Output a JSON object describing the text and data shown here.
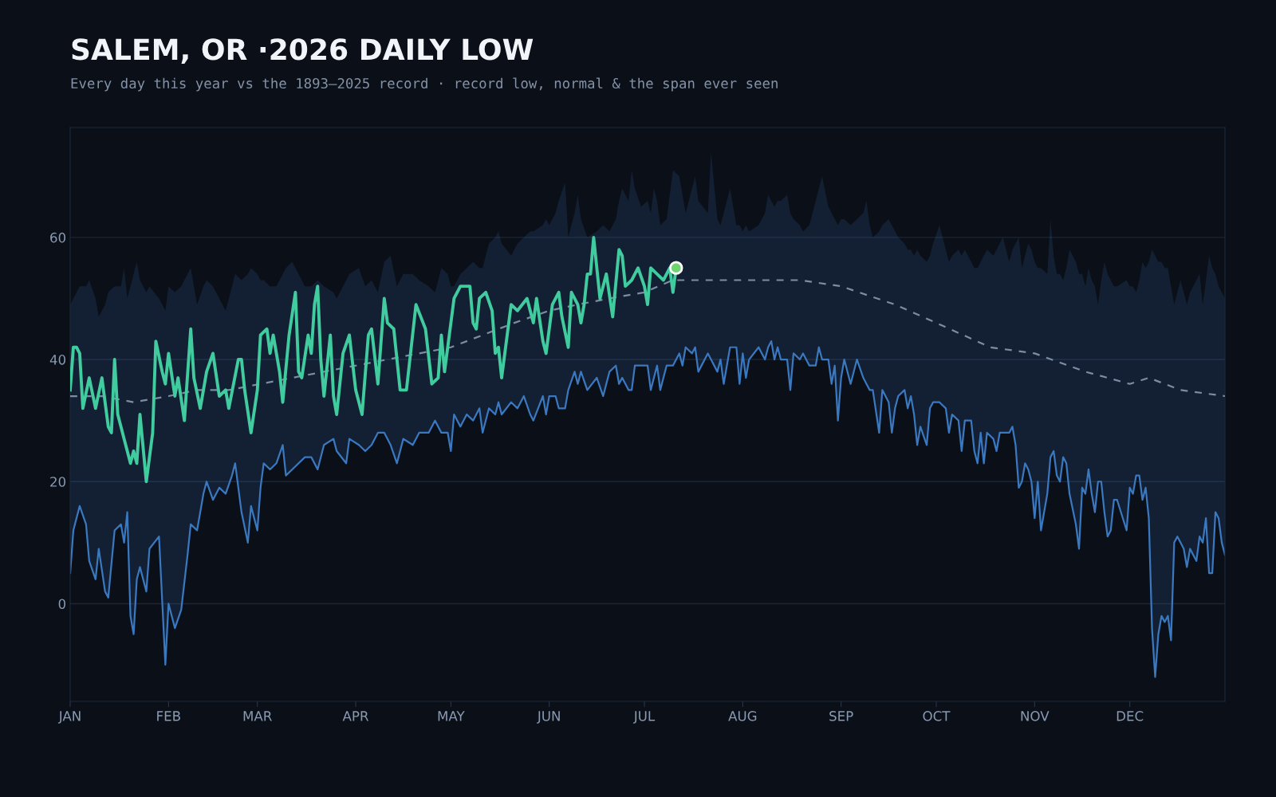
{
  "chart_data": {
    "type": "line",
    "title": "SALEM, OR ·2026 DAILY LOW",
    "subtitle": "Every day this year vs the 1893–2025 record · record low, normal & the span ever seen",
    "xlim": [
      "2026-01-01",
      "2026-12-31"
    ],
    "xticks": [
      {
        "value": "2026-01-01",
        "label": "JAN"
      },
      {
        "value": "2026-02-01",
        "label": "FEB"
      },
      {
        "value": "2026-03-01",
        "label": "MAR"
      },
      {
        "value": "2026-04-01",
        "label": "APR"
      },
      {
        "value": "2026-05-01",
        "label": "MAY"
      },
      {
        "value": "2026-06-01",
        "label": "JUN"
      },
      {
        "value": "2026-07-01",
        "label": "JUL"
      },
      {
        "value": "2026-08-01",
        "label": "AUG"
      },
      {
        "value": "2026-09-01",
        "label": "SEP"
      },
      {
        "value": "2026-10-01",
        "label": "OCT"
      },
      {
        "value": "2026-11-01",
        "label": "NOV"
      },
      {
        "value": "2026-12-01",
        "label": "DEC"
      }
    ],
    "ylim": [
      -16,
      78
    ],
    "yticks": [
      0,
      20,
      40,
      60
    ],
    "grid": "y",
    "series": [
      {
        "type": "line",
        "color": "#3a78c0",
        "line_style": "solid",
        "x": [
          "2026-01-01",
          "2026-01-02",
          "2026-01-04",
          "2026-01-06",
          "2026-01-07",
          "2026-01-09",
          "2026-01-10",
          "2026-01-12",
          "2026-01-13",
          "2026-01-15",
          "2026-01-17",
          "2026-01-18",
          "2026-01-19",
          "2026-01-20",
          "2026-01-21",
          "2026-01-22",
          "2026-01-23",
          "2026-01-25",
          "2026-01-26",
          "2026-01-29",
          "2026-01-31",
          "2026-02-01",
          "2026-02-03",
          "2026-02-05",
          "2026-02-07",
          "2026-02-08",
          "2026-02-10",
          "2026-02-12",
          "2026-02-13",
          "2026-02-15",
          "2026-02-17",
          "2026-02-19",
          "2026-02-21",
          "2026-02-22",
          "2026-02-24",
          "2026-02-26",
          "2026-02-27",
          "2026-03-01",
          "2026-03-02",
          "2026-03-03",
          "2026-03-05",
          "2026-03-07",
          "2026-03-09",
          "2026-03-10",
          "2026-03-12",
          "2026-03-14",
          "2026-03-16",
          "2026-03-18",
          "2026-03-20",
          "2026-03-22",
          "2026-03-25",
          "2026-03-26",
          "2026-03-29",
          "2026-03-30",
          "2026-04-02",
          "2026-04-04",
          "2026-04-06",
          "2026-04-08",
          "2026-04-10",
          "2026-04-12",
          "2026-04-14",
          "2026-04-16",
          "2026-04-19",
          "2026-04-21",
          "2026-04-24",
          "2026-04-26",
          "2026-04-28",
          "2026-04-30",
          "2026-05-01",
          "2026-05-02",
          "2026-05-04",
          "2026-05-06",
          "2026-05-08",
          "2026-05-10",
          "2026-05-11",
          "2026-05-13",
          "2026-05-15",
          "2026-05-16",
          "2026-05-17",
          "2026-05-20",
          "2026-05-22",
          "2026-05-24",
          "2026-05-26",
          "2026-05-27",
          "2026-05-30",
          "2026-05-31",
          "2026-06-01",
          "2026-06-03",
          "2026-06-04",
          "2026-06-06",
          "2026-06-07",
          "2026-06-09",
          "2026-06-10",
          "2026-06-11",
          "2026-06-13",
          "2026-06-16",
          "2026-06-18",
          "2026-06-20",
          "2026-06-22",
          "2026-06-23",
          "2026-06-24",
          "2026-06-26",
          "2026-06-27",
          "2026-06-28",
          "2026-06-30",
          "2026-07-02",
          "2026-07-03",
          "2026-07-04",
          "2026-07-05",
          "2026-07-06",
          "2026-07-08",
          "2026-07-10",
          "2026-07-12",
          "2026-07-13",
          "2026-07-14",
          "2026-07-16",
          "2026-07-17",
          "2026-07-18",
          "2026-07-21",
          "2026-07-22",
          "2026-07-24",
          "2026-07-25",
          "2026-07-26",
          "2026-07-28",
          "2026-07-30",
          "2026-07-31",
          "2026-08-01",
          "2026-08-02",
          "2026-08-03",
          "2026-08-06",
          "2026-08-08",
          "2026-08-09",
          "2026-08-10",
          "2026-08-11",
          "2026-08-12",
          "2026-08-13",
          "2026-08-15",
          "2026-08-16",
          "2026-08-17",
          "2026-08-19",
          "2026-08-20",
          "2026-08-22",
          "2026-08-24",
          "2026-08-25",
          "2026-08-26",
          "2026-08-28",
          "2026-08-29",
          "2026-08-30",
          "2026-08-31",
          "2026-09-01",
          "2026-09-02",
          "2026-09-04",
          "2026-09-06",
          "2026-09-08",
          "2026-09-09",
          "2026-09-10",
          "2026-09-11",
          "2026-09-13",
          "2026-09-14",
          "2026-09-16",
          "2026-09-17",
          "2026-09-18",
          "2026-09-19",
          "2026-09-21",
          "2026-09-22",
          "2026-09-23",
          "2026-09-24",
          "2026-09-25",
          "2026-09-26",
          "2026-09-28",
          "2026-09-29",
          "2026-09-30",
          "2026-10-02",
          "2026-10-04",
          "2026-10-05",
          "2026-10-06",
          "2026-10-08",
          "2026-10-09",
          "2026-10-10",
          "2026-10-12",
          "2026-10-13",
          "2026-10-14",
          "2026-10-15",
          "2026-10-16",
          "2026-10-17",
          "2026-10-19",
          "2026-10-20",
          "2026-10-21",
          "2026-10-22",
          "2026-10-24",
          "2026-10-25",
          "2026-10-26",
          "2026-10-27",
          "2026-10-28",
          "2026-10-29",
          "2026-10-30",
          "2026-10-31",
          "2026-11-01",
          "2026-11-02",
          "2026-11-03",
          "2026-11-05",
          "2026-11-06",
          "2026-11-07",
          "2026-11-08",
          "2026-11-09",
          "2026-11-10",
          "2026-11-11",
          "2026-11-12",
          "2026-11-14",
          "2026-11-15",
          "2026-11-16",
          "2026-11-17",
          "2026-11-18",
          "2026-11-19",
          "2026-11-20",
          "2026-11-21",
          "2026-11-22",
          "2026-11-23",
          "2026-11-24",
          "2026-11-25",
          "2026-11-26",
          "2026-11-27",
          "2026-11-30",
          "2026-12-01",
          "2026-12-02",
          "2026-12-03",
          "2026-12-04",
          "2026-12-05",
          "2026-12-06",
          "2026-12-07",
          "2026-12-08",
          "2026-12-09",
          "2026-12-10",
          "2026-12-11",
          "2026-12-12",
          "2026-12-13",
          "2026-12-14",
          "2026-12-15",
          "2026-12-16",
          "2026-12-17",
          "2026-12-18",
          "2026-12-19",
          "2026-12-20",
          "2026-12-21",
          "2026-12-22",
          "2026-12-23",
          "2026-12-24",
          "2026-12-25",
          "2026-12-26",
          "2026-12-27",
          "2026-12-28",
          "2026-12-29",
          "2026-12-30",
          "2026-12-31"
        ],
        "lower": [
          5,
          12,
          16,
          13,
          7,
          4,
          9,
          2,
          1,
          12,
          13,
          10,
          15,
          -2,
          -5,
          4,
          6,
          2,
          9,
          11,
          -10,
          0,
          -4,
          -1,
          8,
          13,
          12,
          18,
          20,
          17,
          19,
          18,
          21,
          23,
          15,
          10,
          16,
          12,
          19,
          23,
          22,
          23,
          26,
          21,
          22,
          23,
          24,
          24,
          22,
          26,
          27,
          25,
          23,
          27,
          26,
          25,
          26,
          28,
          28,
          26,
          23,
          27,
          26,
          28,
          28,
          30,
          28,
          28,
          25,
          31,
          29,
          31,
          30,
          32,
          28,
          32,
          31,
          33,
          31,
          33,
          32,
          34,
          31,
          30,
          34,
          31,
          34,
          34,
          32,
          32,
          35,
          38,
          36,
          38,
          35,
          37,
          34,
          38,
          39,
          36,
          37,
          35,
          35,
          39,
          39,
          39,
          35,
          37,
          39,
          35,
          39,
          39,
          41,
          39,
          42,
          41,
          42,
          38,
          41,
          40,
          38,
          40,
          36,
          42,
          42,
          36,
          41,
          37,
          40,
          42,
          40,
          42,
          43,
          40,
          42,
          40,
          40,
          35,
          41,
          40,
          41,
          39,
          39,
          42,
          40,
          40,
          36,
          39,
          30,
          37,
          40,
          36,
          40,
          37,
          36,
          35,
          35,
          28,
          35,
          33,
          28,
          32,
          34,
          35,
          32,
          34,
          31,
          26,
          29,
          26,
          32,
          33,
          33,
          32,
          28,
          31,
          30,
          25,
          30,
          30,
          25,
          23,
          28,
          23,
          28,
          27,
          25,
          28,
          28,
          28,
          29,
          26,
          19,
          20,
          23,
          22,
          20,
          14,
          20,
          12,
          18,
          24,
          25,
          21,
          20,
          24,
          23,
          18,
          13,
          9,
          19,
          18,
          22,
          18,
          15,
          20,
          20,
          15,
          11,
          12,
          17,
          17,
          12,
          19,
          18,
          21,
          21,
          17,
          19,
          14,
          -4,
          -12,
          -5,
          -2,
          -3,
          -2,
          -6,
          10,
          11,
          10,
          9,
          6,
          9,
          8,
          7,
          11,
          10,
          14,
          5,
          5,
          15,
          14,
          10,
          8
        ],
        "upper": [
          49,
          50,
          52,
          52,
          53,
          50,
          47,
          49,
          51,
          52,
          52,
          55,
          50,
          52,
          54,
          56,
          53,
          51,
          52,
          50,
          48,
          52,
          51,
          52,
          54,
          55,
          49,
          52,
          53,
          52,
          50,
          48,
          52,
          54,
          53,
          54,
          55,
          54,
          53,
          53,
          52,
          52,
          54,
          55,
          56,
          54,
          52,
          52,
          53,
          52,
          51,
          50,
          53,
          54,
          55,
          52,
          53,
          51,
          56,
          57,
          52,
          54,
          54,
          53,
          52,
          51,
          55,
          54,
          52,
          52,
          54,
          55,
          56,
          55,
          55,
          59,
          60,
          61,
          59,
          57,
          59,
          60,
          61,
          61,
          62,
          63,
          62,
          64,
          66,
          69,
          60,
          64,
          67,
          63,
          60,
          61,
          62,
          61,
          63,
          66,
          68,
          66,
          71,
          68,
          65,
          66,
          64,
          68,
          66,
          62,
          63,
          71,
          70,
          67,
          64,
          68,
          70,
          66,
          64,
          74,
          63,
          62,
          64,
          68,
          62,
          62,
          61,
          62,
          61,
          62,
          64,
          67,
          66,
          65,
          66,
          66,
          67,
          64,
          63,
          62,
          61,
          62,
          66,
          68,
          70,
          65,
          64,
          63,
          62,
          63,
          63,
          62,
          63,
          64,
          66,
          62,
          60,
          61,
          62,
          63,
          62,
          61,
          60,
          59,
          58,
          58,
          57,
          58,
          57,
          56,
          57,
          59,
          62,
          58,
          56,
          57,
          58,
          57,
          58,
          56,
          55,
          55,
          56,
          57,
          58,
          57,
          58,
          59,
          60,
          56,
          58,
          59,
          60,
          55,
          57,
          59,
          58,
          56,
          55,
          55,
          54,
          63,
          57,
          54,
          54,
          53,
          55,
          58,
          56,
          54,
          54,
          52,
          55,
          53,
          52,
          49,
          53,
          56,
          54,
          53,
          52,
          52,
          53,
          52,
          52,
          51,
          53,
          56,
          55,
          56,
          58,
          57,
          56,
          56,
          55,
          55,
          52,
          49,
          51,
          53,
          51,
          49,
          51,
          52,
          53,
          54,
          49,
          53,
          57,
          55,
          54,
          52,
          51,
          50
        ],
        "values": [
          5,
          12,
          16,
          13,
          7,
          4,
          9,
          2,
          1,
          12,
          13,
          10,
          15,
          -2,
          -5,
          4,
          6,
          2,
          9,
          11,
          -10,
          0,
          -4,
          -1,
          8,
          13,
          12,
          18,
          20,
          17,
          19,
          18,
          21,
          23,
          15,
          10,
          16,
          12,
          19,
          23,
          22,
          23,
          26,
          21,
          22,
          23,
          24,
          24,
          22,
          26,
          27,
          25,
          23,
          27,
          26,
          25,
          26,
          28,
          28,
          26,
          23,
          27,
          26,
          28,
          28,
          30,
          28,
          28,
          25,
          31,
          29,
          31,
          30,
          32,
          28,
          32,
          31,
          33,
          31,
          33,
          32,
          34,
          31,
          30,
          34,
          31,
          34,
          34,
          32,
          32,
          35,
          38,
          36,
          38,
          35,
          37,
          34,
          38,
          39,
          36,
          37,
          35,
          35,
          39,
          39,
          39,
          35,
          37,
          39,
          35,
          39,
          39,
          41,
          39,
          42,
          41,
          42,
          38,
          41,
          40,
          38,
          40,
          36,
          42,
          42,
          36,
          41,
          37,
          40,
          42,
          40,
          42,
          43,
          40,
          42,
          40,
          40,
          35,
          41,
          40,
          41,
          39,
          39,
          42,
          40,
          40,
          36,
          39,
          30,
          37,
          40,
          36,
          40,
          37,
          36,
          35,
          35,
          28,
          35,
          33,
          28,
          32,
          34,
          35,
          32,
          34,
          31,
          26,
          29,
          26,
          32,
          33,
          33,
          32,
          28,
          31,
          30,
          25,
          30,
          30,
          25,
          23,
          28,
          23,
          28,
          27,
          25,
          28,
          28,
          28,
          29,
          26,
          19,
          20,
          23,
          22,
          20,
          14,
          20,
          12,
          18,
          24,
          25,
          21,
          20,
          24,
          23,
          18,
          13,
          9,
          19,
          18,
          22,
          18,
          15,
          20,
          20,
          15,
          11,
          12,
          17,
          17,
          12,
          19,
          18,
          21,
          21,
          17,
          19,
          14,
          -4,
          -12,
          -5,
          -2,
          -3,
          -2,
          -6,
          10,
          11,
          10,
          9,
          6,
          9,
          8,
          7,
          11,
          10,
          14,
          5,
          5,
          15,
          14,
          10,
          8
        ]
      },
      {
        "color": "#7c8ca3",
        "line_style": "dashed",
        "x": [
          "2026-01-01",
          "2026-01-11",
          "2026-01-21",
          "2026-02-01",
          "2026-02-10",
          "2026-02-20",
          "2026-03-02",
          "2026-03-12",
          "2026-03-22",
          "2026-04-01",
          "2026-04-11",
          "2026-04-21",
          "2026-05-01",
          "2026-05-11",
          "2026-05-21",
          "2026-06-01",
          "2026-06-10",
          "2026-06-20",
          "2026-07-01",
          "2026-07-10",
          "2026-07-20",
          "2026-08-01",
          "2026-08-19",
          "2026-09-01",
          "2026-09-18",
          "2026-10-01",
          "2026-10-18",
          "2026-11-01",
          "2026-11-17",
          "2026-12-01",
          "2026-12-07",
          "2026-12-17",
          "2026-12-31"
        ],
        "values": [
          34,
          34,
          33,
          34,
          35,
          35,
          36,
          37,
          38,
          39,
          40,
          41,
          42,
          44,
          46,
          48,
          49,
          50,
          51,
          53,
          53,
          53,
          53,
          52,
          49,
          46,
          42,
          41,
          38,
          36,
          37,
          35,
          34
        ]
      },
      {
        "color": "#41cca0",
        "line_style": "solid",
        "x": [
          "2026-01-01",
          "2026-01-02",
          "2026-01-03",
          "2026-01-04",
          "2026-01-05",
          "2026-01-07",
          "2026-01-09",
          "2026-01-11",
          "2026-01-13",
          "2026-01-14",
          "2026-01-15",
          "2026-01-16",
          "2026-01-18",
          "2026-01-20",
          "2026-01-21",
          "2026-01-22",
          "2026-01-23",
          "2026-01-25",
          "2026-01-27",
          "2026-01-28",
          "2026-01-30",
          "2026-01-31",
          "2026-02-01",
          "2026-02-03",
          "2026-02-04",
          "2026-02-06",
          "2026-02-08",
          "2026-02-09",
          "2026-02-11",
          "2026-02-13",
          "2026-02-15",
          "2026-02-17",
          "2026-02-19",
          "2026-02-20",
          "2026-02-23",
          "2026-02-24",
          "2026-02-25",
          "2026-02-27",
          "2026-03-01",
          "2026-03-02",
          "2026-03-04",
          "2026-03-05",
          "2026-03-06",
          "2026-03-08",
          "2026-03-09",
          "2026-03-11",
          "2026-03-13",
          "2026-03-14",
          "2026-03-15",
          "2026-03-17",
          "2026-03-18",
          "2026-03-19",
          "2026-03-20",
          "2026-03-21",
          "2026-03-22",
          "2026-03-24",
          "2026-03-25",
          "2026-03-26",
          "2026-03-28",
          "2026-03-30",
          "2026-04-01",
          "2026-04-03",
          "2026-04-05",
          "2026-04-06",
          "2026-04-08",
          "2026-04-10",
          "2026-04-11",
          "2026-04-13",
          "2026-04-15",
          "2026-04-17",
          "2026-04-20",
          "2026-04-23",
          "2026-04-25",
          "2026-04-27",
          "2026-04-28",
          "2026-04-29",
          "2026-05-02",
          "2026-05-04",
          "2026-05-07",
          "2026-05-08",
          "2026-05-09",
          "2026-05-10",
          "2026-05-12",
          "2026-05-14",
          "2026-05-15",
          "2026-05-16",
          "2026-05-17",
          "2026-05-19",
          "2026-05-20",
          "2026-05-22",
          "2026-05-25",
          "2026-05-27",
          "2026-05-28",
          "2026-05-30",
          "2026-05-31",
          "2026-06-02",
          "2026-06-04",
          "2026-06-05",
          "2026-06-07",
          "2026-06-08",
          "2026-06-10",
          "2026-06-11",
          "2026-06-12",
          "2026-06-13",
          "2026-06-14",
          "2026-06-15",
          "2026-06-17",
          "2026-06-19",
          "2026-06-21",
          "2026-06-23",
          "2026-06-24",
          "2026-06-25",
          "2026-06-27",
          "2026-06-29",
          "2026-07-01",
          "2026-07-02",
          "2026-07-03",
          "2026-07-05",
          "2026-07-07",
          "2026-07-09",
          "2026-07-10",
          "2026-07-11"
        ],
        "values": [
          35,
          42,
          42,
          41,
          32,
          37,
          32,
          37,
          29,
          28,
          40,
          31,
          27,
          23,
          25,
          23,
          31,
          20,
          28,
          43,
          38,
          36,
          41,
          34,
          37,
          30,
          45,
          37,
          32,
          38,
          41,
          34,
          35,
          32,
          40,
          40,
          35,
          28,
          35,
          44,
          45,
          41,
          44,
          38,
          33,
          44,
          51,
          38,
          37,
          44,
          41,
          49,
          52,
          40,
          34,
          44,
          34,
          31,
          41,
          44,
          35,
          31,
          44,
          45,
          36,
          50,
          46,
          45,
          35,
          35,
          49,
          45,
          36,
          37,
          44,
          38,
          50,
          52,
          52,
          46,
          45,
          50,
          51,
          48,
          41,
          42,
          37,
          45,
          49,
          48,
          50,
          46,
          50,
          43,
          41,
          49,
          51,
          47,
          42,
          51,
          49,
          46,
          49,
          54,
          54,
          60,
          50,
          54,
          47,
          58,
          57,
          52,
          53,
          55,
          52,
          49,
          55,
          54,
          53,
          55,
          51,
          55
        ]
      },
      {
        "type": "scatter",
        "color": "#6fd36f",
        "marker": "circle",
        "x": [
          "2026-07-11"
        ],
        "values": [
          55
        ]
      }
    ]
  }
}
